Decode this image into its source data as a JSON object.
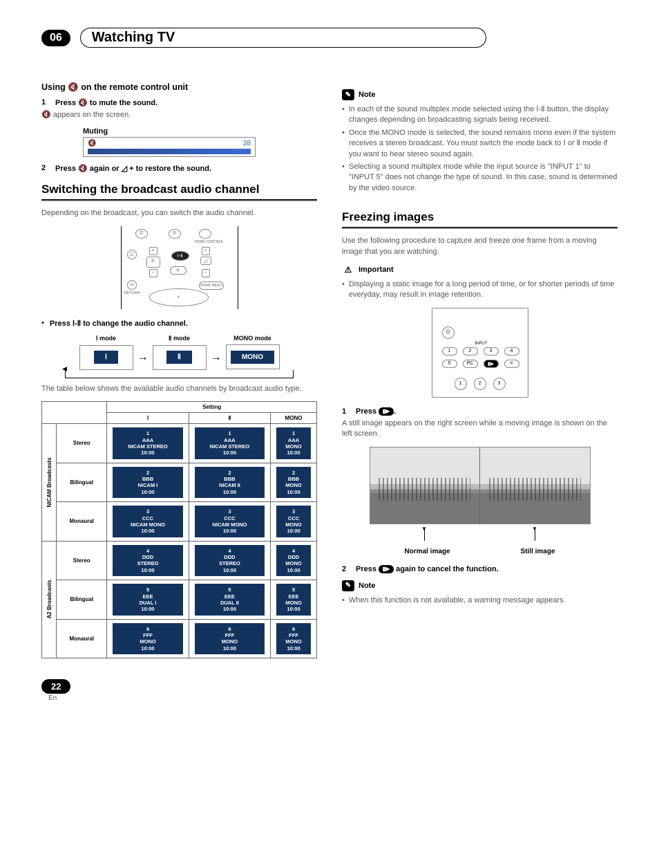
{
  "chapter": {
    "number": "06",
    "title": "Watching TV"
  },
  "left": {
    "using_heading_pre": "Using ",
    "using_heading_post": " on the remote control unit",
    "mute_glyph": "🔇",
    "step1_num": "1",
    "step1_text_pre": "Press ",
    "step1_text_post": " to mute the sound.",
    "step1_body_pre": "",
    "step1_body_post": " appears on the screen.",
    "muting_label": "Muting",
    "muting_value": "28",
    "step2_num": "2",
    "step2_text_pre": "Press ",
    "step2_text_mid": " again or ",
    "step2_text_post": " + to restore the sound.",
    "vol_glyph": "◿",
    "switch_heading": "Switching the broadcast audio channel",
    "switch_body": "Depending on the broadcast, you can switch the audio channel.",
    "remote_labels": {
      "hdmi": "HDMI CONTROL",
      "p": "P",
      "return": "RETURN",
      "home": "HOME MENU",
      "zero": "0",
      "i_ii_chip": "Ⅰ-Ⅱ"
    },
    "press_i_ii": "Press Ⅰ-Ⅱ to change the audio channel.",
    "modes": {
      "m1_label": "Ⅰ mode",
      "m1_chip": "Ⅰ",
      "m2_label": "Ⅱ mode",
      "m2_chip": "Ⅱ",
      "m3_label": "MONO mode",
      "m3_chip": "MONO"
    },
    "table_intro": "The table below shows the available audio channels by broadcast audio type.",
    "table": {
      "setting": "Setting",
      "col_i": "Ⅰ",
      "col_ii": "Ⅱ",
      "col_mono": "MONO",
      "groups": [
        {
          "name": "NICAM Broadcasts",
          "rows": [
            {
              "type": "Stereo",
              "cells": [
                [
                  "1",
                  "AAA",
                  "NICAM STEREO",
                  "10:00"
                ],
                [
                  "1",
                  "AAA",
                  "NICAM STEREO",
                  "10:00"
                ],
                [
                  "1",
                  "AAA",
                  "MONO",
                  "10:00"
                ]
              ]
            },
            {
              "type": "Bilingual",
              "cells": [
                [
                  "2",
                  "BBB",
                  "NICAM I",
                  "10:00"
                ],
                [
                  "2",
                  "BBB",
                  "NICAM II",
                  "10:00"
                ],
                [
                  "2",
                  "BBB",
                  "MONO",
                  "10:00"
                ]
              ]
            },
            {
              "type": "Monaural",
              "cells": [
                [
                  "3",
                  "CCC",
                  "NICAM MONO",
                  "10:00"
                ],
                [
                  "3",
                  "CCC",
                  "NICAM MONO",
                  "10:00"
                ],
                [
                  "3",
                  "CCC",
                  "MONO",
                  "10:00"
                ]
              ]
            }
          ]
        },
        {
          "name": "A2 Broadcasts",
          "rows": [
            {
              "type": "Stereo",
              "cells": [
                [
                  "4",
                  "DDD",
                  "STEREO",
                  "10:00"
                ],
                [
                  "4",
                  "DDD",
                  "STEREO",
                  "10:00"
                ],
                [
                  "4",
                  "DDD",
                  "MONO",
                  "10:00"
                ]
              ]
            },
            {
              "type": "Bilingual",
              "cells": [
                [
                  "5",
                  "EEE",
                  "DUAL I",
                  "10:00"
                ],
                [
                  "5",
                  "EEE",
                  "DUAL II",
                  "10:00"
                ],
                [
                  "5",
                  "EEE",
                  "MONO",
                  "10:00"
                ]
              ]
            },
            {
              "type": "Monaural",
              "cells": [
                [
                  "6",
                  "FFF",
                  "MONO",
                  "10:00"
                ],
                [
                  "6",
                  "FFF",
                  "MONO",
                  "10:00"
                ],
                [
                  "6",
                  "FFF",
                  "MONO",
                  "10:00"
                ]
              ]
            }
          ]
        }
      ]
    }
  },
  "right": {
    "note_label": "Note",
    "note1": "In each of the sound multiplex mode selected using the Ⅰ-Ⅱ button, the display changes depending on broadcasting signals being received.",
    "note2": "Once the MONO mode is selected, the sound remains mono even if the system receives a stereo broadcast. You must switch the mode back to Ⅰ or Ⅱ mode if you want to hear stereo sound again.",
    "note3": "Selecting a sound multiplex mode while the input source is \"INPUT 1\" to \"INPUT 5\" does not change the type of sound. In this case, sound is determined by the video source.",
    "freeze_heading": "Freezing images",
    "freeze_body": "Use the following procedure to capture and freeze one frame from a moving image that you are watching.",
    "important_label": "Important",
    "important_text": "Displaying a static image for a long period of time, or for shorter periods of time everyday, may result in image retention.",
    "remote2": {
      "input": "INPUT",
      "b1": "1",
      "b2": "2",
      "b3": "3",
      "b4": "4",
      "b5": "5",
      "pc": "PC",
      "freeze_btn": "▮▶",
      "g": "⌗",
      "c1": "1",
      "c2": "2",
      "c3": "3"
    },
    "fstep1_num": "1",
    "fstep1_text": "Press ",
    "freeze_btn_glyph": "▮▶",
    "fstep1_post": ".",
    "fstep1_body": "A still image appears on the right screen while a moving image is shown on the left screen.",
    "cap_normal": "Normal image",
    "cap_still": "Still image",
    "fstep2_num": "2",
    "fstep2_text_pre": "Press ",
    "fstep2_text_post": " again to cancel the function.",
    "note4": "When this function is not available, a warning message appears."
  },
  "footer": {
    "page": "22",
    "lang": "En"
  },
  "colors": {
    "chip_bg": "#13335f",
    "body_text": "#555555"
  }
}
